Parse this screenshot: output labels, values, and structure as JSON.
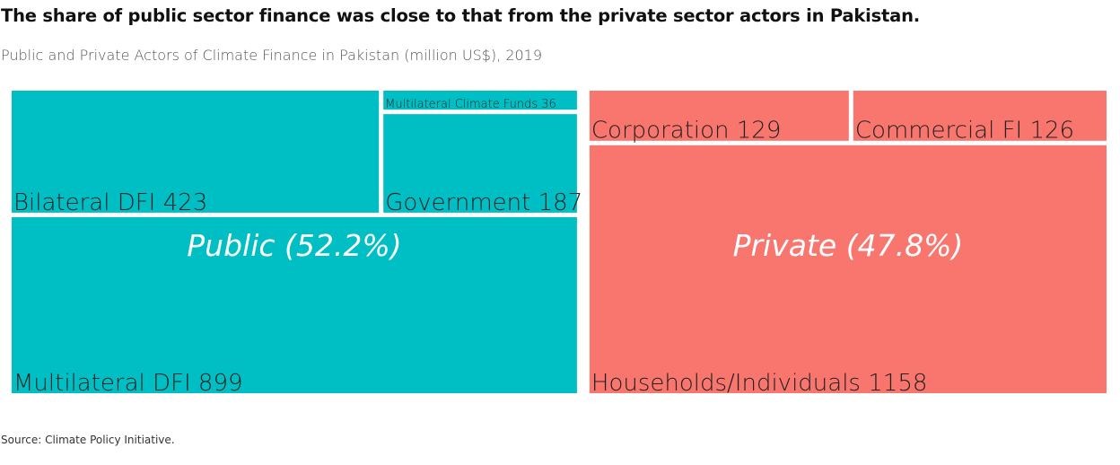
{
  "title": "The share of public sector finance was close to that from the private sector actors in Pakistan.",
  "subtitle": "Public and Private Actors of Climate Finance in Pakistan (million US$), 2019",
  "source": "Source: Climate Policy Initiative.",
  "colors": {
    "public": "#00BFC4",
    "private": "#F8766D"
  },
  "chart_data": {
    "type": "treemap",
    "groups": [
      {
        "name": "Public",
        "label": "Public (52.2%)",
        "share_pct": 52.2,
        "items": [
          {
            "name": "Multilateral DFI",
            "value": 899,
            "label": "Multilateral DFI 899"
          },
          {
            "name": "Bilateral DFI",
            "value": 423,
            "label": "Bilateral DFI 423"
          },
          {
            "name": "Government",
            "value": 187,
            "label": "Government 187"
          },
          {
            "name": "Multilateral Climate Funds",
            "value": 36,
            "label": "Multilateral Climate Funds 36"
          }
        ]
      },
      {
        "name": "Private",
        "label": "Private (47.8%)",
        "share_pct": 47.8,
        "items": [
          {
            "name": "Households/Individuals",
            "value": 1158,
            "label": "Households/Individuals 1158"
          },
          {
            "name": "Corporation",
            "value": 129,
            "label": "Corporation 129"
          },
          {
            "name": "Commercial FI",
            "value": 126,
            "label": "Commercial FI 126"
          }
        ]
      }
    ]
  }
}
